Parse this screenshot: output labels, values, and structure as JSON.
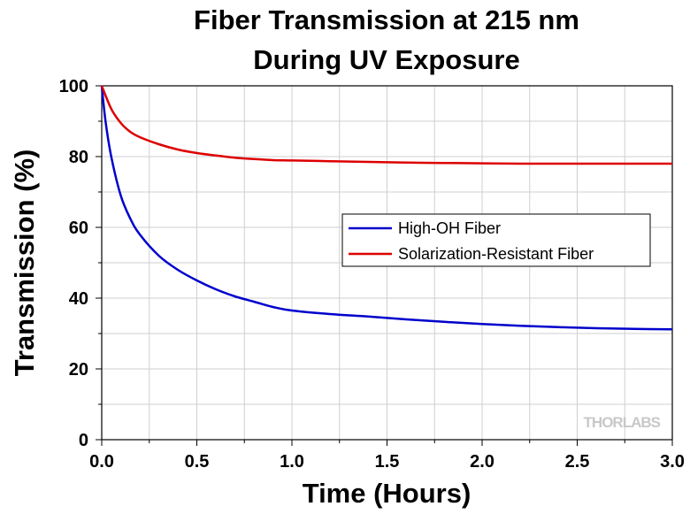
{
  "chart_data": {
    "type": "line",
    "title": "Fiber Transmission at 215 nm",
    "subtitle": "During UV Exposure",
    "xlabel": "Time (Hours)",
    "ylabel": "Transmission (%)",
    "xlim": [
      0,
      3
    ],
    "ylim": [
      0,
      100
    ],
    "xticks": [
      "0.0",
      "0.5",
      "1.0",
      "1.5",
      "2.0",
      "2.5",
      "3.0"
    ],
    "yticks": [
      "0",
      "20",
      "40",
      "60",
      "80",
      "100"
    ],
    "grid": true,
    "legend_position": "center-right",
    "series": [
      {
        "name": "High-OH Fiber",
        "color": "#0000cc",
        "x": [
          0,
          0.02,
          0.05,
          0.1,
          0.15,
          0.2,
          0.3,
          0.4,
          0.5,
          0.6,
          0.7,
          0.8,
          0.9,
          1.0,
          1.2,
          1.4,
          1.6,
          1.8,
          2.0,
          2.2,
          2.4,
          2.6,
          2.8,
          3.0
        ],
        "y": [
          100,
          90,
          80,
          69,
          62.5,
          58,
          52,
          48,
          45,
          42.5,
          40.5,
          39,
          37.5,
          36.5,
          35.5,
          34.8,
          34,
          33.3,
          32.7,
          32.2,
          31.8,
          31.5,
          31.3,
          31.2
        ]
      },
      {
        "name": "Solarization-Resistant Fiber",
        "color": "#dd0000",
        "x": [
          0,
          0.05,
          0.1,
          0.15,
          0.2,
          0.3,
          0.4,
          0.5,
          0.6,
          0.7,
          0.8,
          0.9,
          1.0,
          1.2,
          1.4,
          1.6,
          1.8,
          2.0,
          2.2,
          2.4,
          2.6,
          2.8,
          3.0
        ],
        "y": [
          100,
          93.5,
          89.5,
          87,
          85.5,
          83.5,
          82,
          81,
          80.3,
          79.7,
          79.3,
          79,
          78.9,
          78.7,
          78.5,
          78.3,
          78.2,
          78.1,
          78,
          78,
          78,
          78,
          78
        ]
      }
    ],
    "watermark": "THORLABS"
  }
}
